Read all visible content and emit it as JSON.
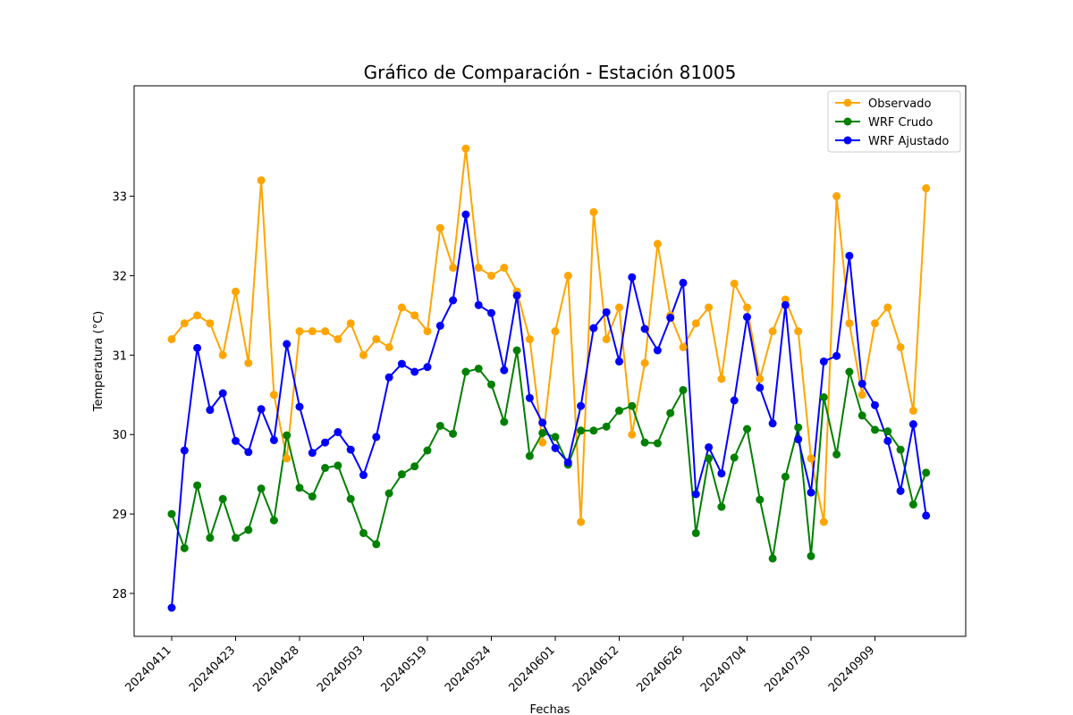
{
  "chart_data": {
    "type": "line",
    "title": "Gráfico de Comparación - Estación 81005",
    "xlabel": "Fechas",
    "ylabel": "Temperatura (°C)",
    "ylim": [
      27.46,
      34.39
    ],
    "yticks": [
      28,
      29,
      30,
      31,
      32,
      33
    ],
    "x_tick_labels": [
      {
        "index": 0,
        "label": "20240411"
      },
      {
        "index": 5,
        "label": "20240423"
      },
      {
        "index": 10,
        "label": "20240428"
      },
      {
        "index": 15,
        "label": "20240503"
      },
      {
        "index": 20,
        "label": "20240519"
      },
      {
        "index": 25,
        "label": "20240524"
      },
      {
        "index": 30,
        "label": "20240601"
      },
      {
        "index": 35,
        "label": "20240612"
      },
      {
        "index": 40,
        "label": "20240626"
      },
      {
        "index": 45,
        "label": "20240704"
      },
      {
        "index": 50,
        "label": "20240730"
      },
      {
        "index": 55,
        "label": "20240909"
      }
    ],
    "grid": false,
    "legend_position": "top-right",
    "series": [
      {
        "name": "Observado",
        "color": "#ffa500",
        "values": [
          31.2,
          31.4,
          31.5,
          31.4,
          31.0,
          31.8,
          30.9,
          33.2,
          30.5,
          29.7,
          31.3,
          31.3,
          31.3,
          31.2,
          31.4,
          31.0,
          31.2,
          31.1,
          31.6,
          31.5,
          31.3,
          32.6,
          32.1,
          33.6,
          32.1,
          32.0,
          32.1,
          31.8,
          31.2,
          29.9,
          31.3,
          32.0,
          28.9,
          32.8,
          31.2,
          31.6,
          30.0,
          30.9,
          32.4,
          31.5,
          31.1,
          31.4,
          31.6,
          30.7,
          31.9,
          31.6,
          30.7,
          31.3,
          31.7,
          31.3,
          29.7,
          28.9,
          33.0,
          31.4,
          30.5,
          31.4,
          31.6,
          31.1,
          30.3,
          33.1
        ]
      },
      {
        "name": "WRF Crudo",
        "color": "#008000",
        "values": [
          29.0,
          28.57,
          29.36,
          28.7,
          29.19,
          28.7,
          28.8,
          29.32,
          28.92,
          29.99,
          29.33,
          29.22,
          29.58,
          29.61,
          29.19,
          28.76,
          28.62,
          29.26,
          29.5,
          29.6,
          29.8,
          30.11,
          30.01,
          30.79,
          30.83,
          30.63,
          30.16,
          31.06,
          29.73,
          30.02,
          29.97,
          29.62,
          30.05,
          30.05,
          30.1,
          30.3,
          30.36,
          29.9,
          29.89,
          30.27,
          30.56,
          28.76,
          29.7,
          29.09,
          29.71,
          30.07,
          29.18,
          28.44,
          29.47,
          30.09,
          28.47,
          30.47,
          29.75,
          30.79,
          30.24,
          30.06,
          30.04,
          29.81,
          29.12,
          29.52
        ]
      },
      {
        "name": "WRF Ajustado",
        "color": "#0000ff",
        "values": [
          27.82,
          29.8,
          31.09,
          30.31,
          30.52,
          29.92,
          29.78,
          30.32,
          29.93,
          31.14,
          30.35,
          29.77,
          29.9,
          30.03,
          29.81,
          29.49,
          29.97,
          30.72,
          30.89,
          30.79,
          30.85,
          31.37,
          31.69,
          32.77,
          31.63,
          31.53,
          30.81,
          31.75,
          30.46,
          30.15,
          29.83,
          29.65,
          30.36,
          31.34,
          31.54,
          30.92,
          31.98,
          31.33,
          31.06,
          31.47,
          31.91,
          29.25,
          29.84,
          29.51,
          30.43,
          31.48,
          30.59,
          30.14,
          31.63,
          29.94,
          29.27,
          30.92,
          30.99,
          32.25,
          30.64,
          30.37,
          29.92,
          29.29,
          30.13,
          28.98
        ]
      }
    ]
  }
}
